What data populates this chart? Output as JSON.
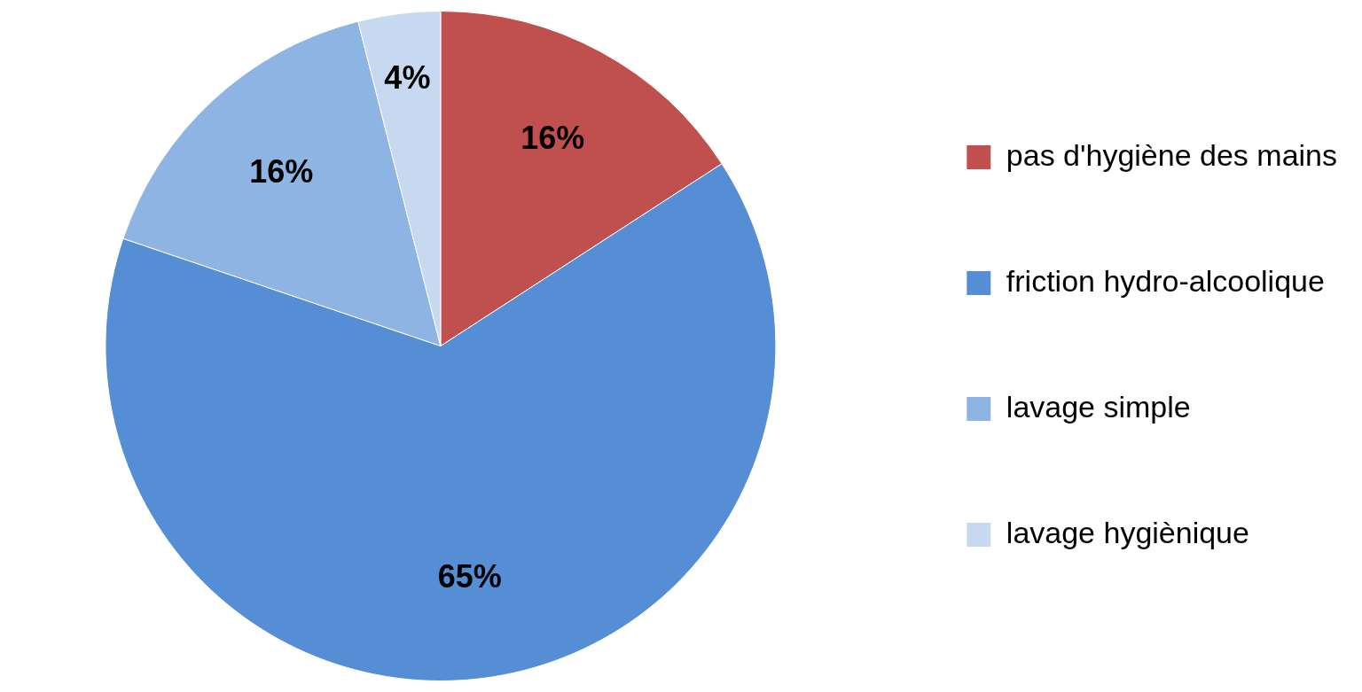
{
  "chart_data": {
    "type": "pie",
    "categories": [
      "pas d'hygiène des mains",
      "friction hydro-alcoolique",
      "lavage simple",
      "lavage hygiènique"
    ],
    "values": [
      16,
      65,
      16,
      4
    ],
    "colors": [
      "#c0504d",
      "#558ed5",
      "#8eb4e3",
      "#c6d9f1"
    ],
    "value_labels": [
      "16%",
      "65%",
      "16%",
      "4%"
    ],
    "legend": "right"
  }
}
